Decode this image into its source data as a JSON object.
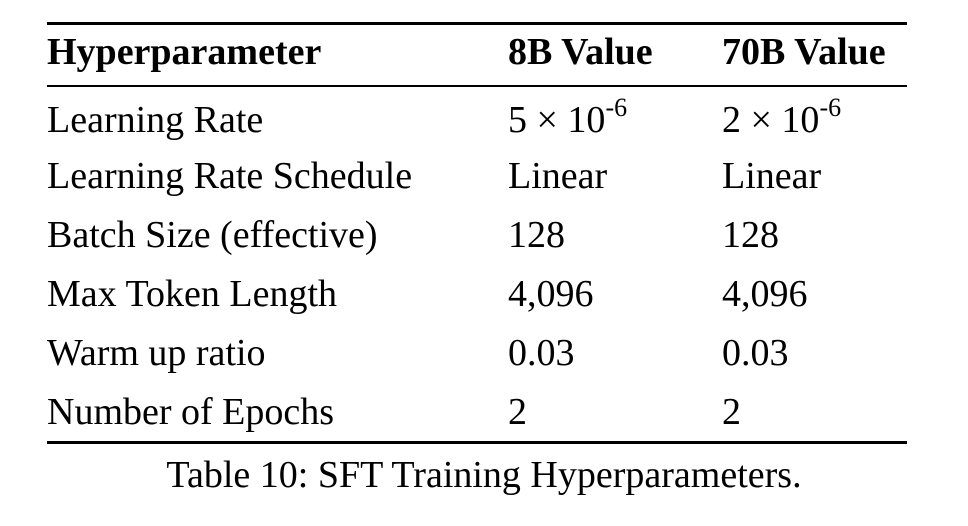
{
  "table": {
    "headers": [
      "Hyperparameter",
      "8B Value",
      "70B Value"
    ],
    "rows": [
      {
        "param": "Learning Rate",
        "v8b": {
          "mantissa": "5 × 10",
          "exp": "-6"
        },
        "v70b": {
          "mantissa": "2 × 10",
          "exp": "-6"
        }
      },
      {
        "param": "Learning Rate Schedule",
        "v8b": {
          "text": "Linear"
        },
        "v70b": {
          "text": "Linear"
        }
      },
      {
        "param": "Batch Size (effective)",
        "v8b": {
          "text": "128"
        },
        "v70b": {
          "text": "128"
        }
      },
      {
        "param": "Max Token Length",
        "v8b": {
          "text": "4,096"
        },
        "v70b": {
          "text": "4,096"
        }
      },
      {
        "param": "Warm up ratio",
        "v8b": {
          "text": "0.03"
        },
        "v70b": {
          "text": "0.03"
        }
      },
      {
        "param": "Number of Epochs",
        "v8b": {
          "text": "2"
        },
        "v70b": {
          "text": "2"
        }
      }
    ]
  },
  "caption": "Table 10: SFT Training Hyperparameters."
}
